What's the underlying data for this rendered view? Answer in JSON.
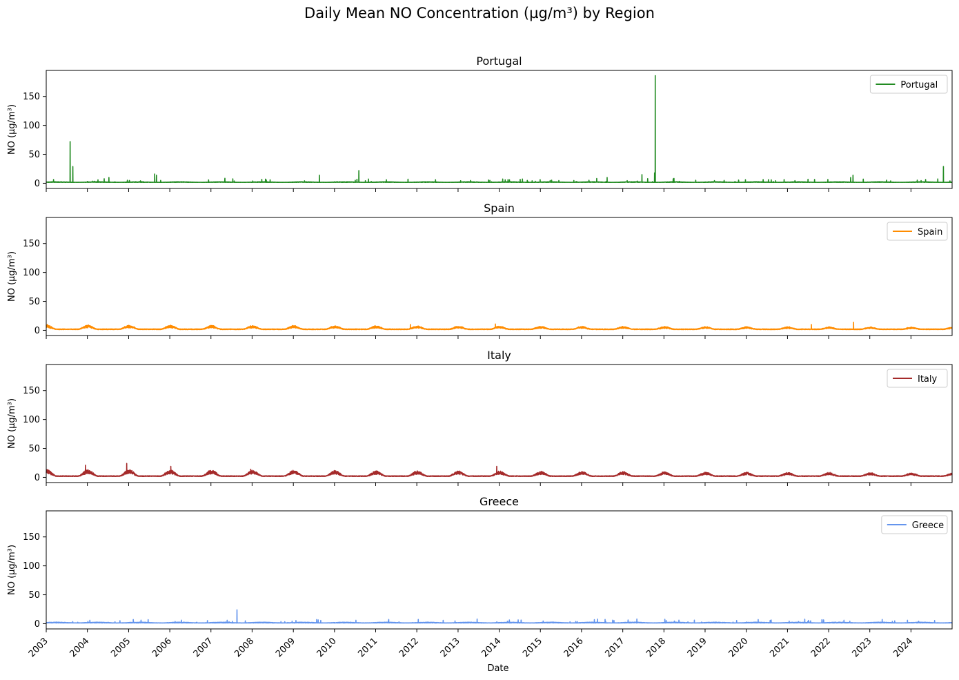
{
  "chart_data": {
    "type": "line",
    "title": "Daily Mean NO Concentration (µg/m³) by Region",
    "xlabel": "Date",
    "ylabel": "NO (µg/m³)",
    "x_range": [
      "2003-01-01",
      "2024-12-31"
    ],
    "x_ticks": [
      "2003",
      "2004",
      "2005",
      "2006",
      "2007",
      "2008",
      "2009",
      "2010",
      "2011",
      "2012",
      "2013",
      "2014",
      "2015",
      "2016",
      "2017",
      "2018",
      "2019",
      "2020",
      "2021",
      "2022",
      "2023",
      "2024"
    ],
    "ylim": [
      -9,
      195
    ],
    "y_ticks": [
      0,
      50,
      100,
      150
    ],
    "legend_position": "upper-right",
    "series": [
      {
        "name": "Portugal",
        "color": "#228B22",
        "profile": "baseline",
        "base_level": 1.5,
        "seasonal_amplitude": 1.2,
        "spikes": [
          {
            "date": "2003-08-01",
            "value": 72
          },
          {
            "date": "2003-08-25",
            "value": 29
          },
          {
            "date": "2004-07-10",
            "value": 10
          },
          {
            "date": "2005-08-20",
            "value": 16
          },
          {
            "date": "2005-09-05",
            "value": 14
          },
          {
            "date": "2009-08-20",
            "value": 14
          },
          {
            "date": "2010-08-05",
            "value": 22
          },
          {
            "date": "2011-10-15",
            "value": 7
          },
          {
            "date": "2016-08-15",
            "value": 10
          },
          {
            "date": "2017-06-20",
            "value": 15
          },
          {
            "date": "2017-08-10",
            "value": 8
          },
          {
            "date": "2017-10-10",
            "value": 18
          },
          {
            "date": "2017-10-16",
            "value": 186
          },
          {
            "date": "2020-08-10",
            "value": 6
          },
          {
            "date": "2022-07-15",
            "value": 10
          },
          {
            "date": "2022-08-05",
            "value": 14
          },
          {
            "date": "2024-10-15",
            "value": 29
          }
        ]
      },
      {
        "name": "Spain",
        "color": "#FF8C00",
        "profile": "seasonal",
        "base_level": 1.2,
        "seasonal_amplitude": 5,
        "spikes": [
          {
            "date": "2003-01-10",
            "value": 10
          },
          {
            "date": "2011-11-05",
            "value": 10
          },
          {
            "date": "2013-11-28",
            "value": 11
          },
          {
            "date": "2021-08-01",
            "value": 10
          },
          {
            "date": "2022-08-10",
            "value": 14
          }
        ]
      },
      {
        "name": "Italy",
        "color": "#A52A2A",
        "profile": "seasonal",
        "base_level": 1.5,
        "seasonal_amplitude": 8,
        "spikes": [
          {
            "date": "2003-12-15",
            "value": 21
          },
          {
            "date": "2004-12-15",
            "value": 24
          },
          {
            "date": "2006-01-10",
            "value": 19
          },
          {
            "date": "2007-12-20",
            "value": 14
          },
          {
            "date": "2013-12-10",
            "value": 19
          }
        ]
      },
      {
        "name": "Greece",
        "color": "#6495ED",
        "profile": "baseline",
        "base_level": 1.2,
        "seasonal_amplitude": 1.5,
        "spikes": [
          {
            "date": "2007-07-10",
            "value": 4
          },
          {
            "date": "2007-08-20",
            "value": 24
          },
          {
            "date": "2021-07-25",
            "value": 5
          },
          {
            "date": "2023-07-20",
            "value": 4
          },
          {
            "date": "2023-08-10",
            "value": 5
          }
        ]
      }
    ]
  }
}
